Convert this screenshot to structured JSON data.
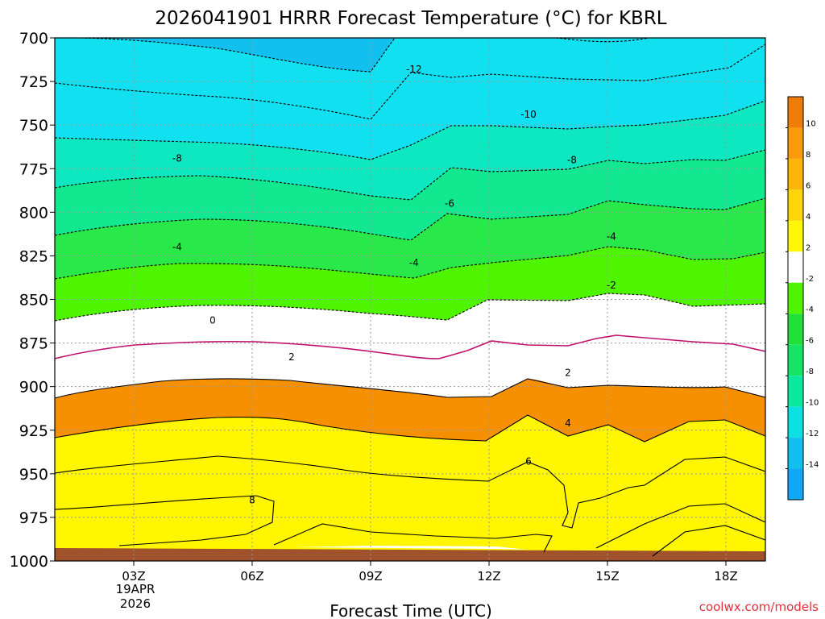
{
  "chart_data": {
    "type": "contour",
    "title": "2026041901 HRRR Forecast Temperature (°C) for KBRL",
    "xlabel": "Forecast Time (UTC)",
    "y_ticks": [
      "700",
      "725",
      "750",
      "775",
      "800",
      "825",
      "850",
      "875",
      "900",
      "925",
      "950",
      "975",
      "1000"
    ],
    "x_ticks": [
      "03Z",
      "06Z",
      "09Z",
      "12Z",
      "15Z",
      "18Z"
    ],
    "x_date_label": [
      "19APR",
      "2026"
    ],
    "x_range_hours": [
      1,
      19
    ],
    "y_range_hpa": [
      700,
      1000
    ],
    "grid": "dotted",
    "contour_labels": [
      {
        "text": "-12",
        "hour": 10.1,
        "hpa": 718
      },
      {
        "text": "-10",
        "hour": 13.0,
        "hpa": 744
      },
      {
        "text": "-8",
        "hour": 4.1,
        "hpa": 769
      },
      {
        "text": "-8",
        "hour": 14.1,
        "hpa": 770
      },
      {
        "text": "-6",
        "hour": 11.0,
        "hpa": 795
      },
      {
        "text": "-4",
        "hour": 4.1,
        "hpa": 820
      },
      {
        "text": "-4",
        "hour": 10.1,
        "hpa": 829
      },
      {
        "text": "-4",
        "hour": 15.1,
        "hpa": 814
      },
      {
        "text": "-2",
        "hour": 15.1,
        "hpa": 842
      },
      {
        "text": "0",
        "hour": 5.0,
        "hpa": 862
      },
      {
        "text": "2",
        "hour": 7.0,
        "hpa": 883
      },
      {
        "text": "2",
        "hour": 14.0,
        "hpa": 892
      },
      {
        "text": "4",
        "hour": 14.0,
        "hpa": 921
      },
      {
        "text": "6",
        "hour": 13.0,
        "hpa": 943
      },
      {
        "text": "8",
        "hour": 6.0,
        "hpa": 965
      }
    ],
    "colorbar": {
      "labels": [
        "10",
        "8",
        "6",
        "4",
        "2",
        "-2",
        "-4",
        "-6",
        "-8",
        "-10",
        "-12",
        "-14"
      ],
      "colors": [
        "#f07d0a",
        "#f99b0a",
        "#fcb50a",
        "#fdd50a",
        "#fff60a",
        "#ffffff",
        "#4ef400",
        "#22e03a",
        "#16e466",
        "#0de8a0",
        "#0de0e0",
        "#12c0f0",
        "#12a8f8"
      ]
    },
    "fill_colors": {
      "t_lt_m12": "#12bff5",
      "t_m12_m10": "#10e0f0",
      "t_m10_m8": "#0ee8c0",
      "t_m8_m6": "#12e890",
      "t_m6_m4": "#28e84a",
      "t_m4_m2": "#4ef400",
      "t_m2_2": "#ffffff",
      "t_2_4": "#fff600",
      "t_4_6": "#fdd500",
      "t_6_8": "#fab800",
      "t_gt_8": "#f79000",
      "ground": "#a0522d"
    }
  },
  "credit": "coolwx.com/models"
}
